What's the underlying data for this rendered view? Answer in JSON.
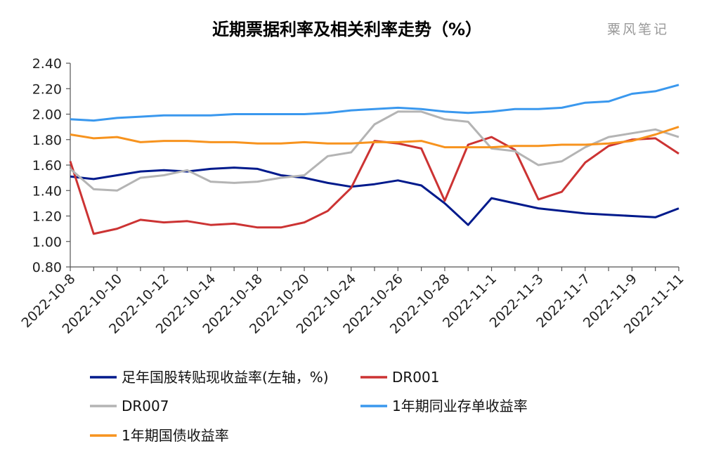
{
  "chart_data": {
    "type": "line",
    "title": "近期票据利率及相关利率走势（%）",
    "watermark": "粟风笔记",
    "ylim": [
      0.8,
      2.4
    ],
    "yticks": [
      "0.80",
      "1.00",
      "1.20",
      "1.40",
      "1.60",
      "1.80",
      "2.00",
      "2.20",
      "2.40"
    ],
    "x_tick_labels": [
      "2022-10-8",
      "2022-10-10",
      "2022-10-12",
      "2022-10-14",
      "2022-10-18",
      "2022-10-20",
      "2022-10-24",
      "2022-10-26",
      "2022-10-28",
      "2022-11-1",
      "2022-11-3",
      "2022-11-7",
      "2022-11-9",
      "2022-11-11"
    ],
    "point_count": 27,
    "series": [
      {
        "name": "足年国股转贴现收益率(左轴，%)",
        "color": "#001a8c",
        "values": [
          1.51,
          1.49,
          1.52,
          1.55,
          1.56,
          1.55,
          1.57,
          1.58,
          1.57,
          1.52,
          1.5,
          1.46,
          1.43,
          1.45,
          1.48,
          1.44,
          1.3,
          1.13,
          1.34,
          1.3,
          1.26,
          1.24,
          1.22,
          1.21,
          1.2,
          1.19,
          1.26
        ]
      },
      {
        "name": "DR001",
        "color": "#cc3333",
        "values": [
          1.63,
          1.06,
          1.1,
          1.17,
          1.15,
          1.16,
          1.13,
          1.14,
          1.11,
          1.11,
          1.15,
          1.24,
          1.42,
          1.79,
          1.77,
          1.73,
          1.32,
          1.76,
          1.82,
          1.72,
          1.33,
          1.39,
          1.62,
          1.75,
          1.8,
          1.81,
          1.69
        ]
      },
      {
        "name": "DR007",
        "color": "#b4b4b4",
        "values": [
          1.57,
          1.41,
          1.4,
          1.5,
          1.52,
          1.56,
          1.47,
          1.46,
          1.47,
          1.5,
          1.52,
          1.67,
          1.7,
          1.92,
          2.02,
          2.02,
          1.96,
          1.94,
          1.73,
          1.71,
          1.6,
          1.63,
          1.74,
          1.82,
          1.85,
          1.88,
          1.82
        ]
      },
      {
        "name": "1年期同业存单收益率",
        "color": "#3a98ee",
        "values": [
          1.96,
          1.95,
          1.97,
          1.98,
          1.99,
          1.99,
          1.99,
          2.0,
          2.0,
          2.0,
          2.0,
          2.01,
          2.03,
          2.04,
          2.05,
          2.04,
          2.02,
          2.01,
          2.02,
          2.04,
          2.04,
          2.05,
          2.09,
          2.1,
          2.16,
          2.18,
          2.23
        ]
      },
      {
        "name": "1年期国债收益率",
        "color": "#f7931e",
        "values": [
          1.84,
          1.81,
          1.82,
          1.78,
          1.79,
          1.79,
          1.78,
          1.78,
          1.77,
          1.77,
          1.78,
          1.77,
          1.77,
          1.78,
          1.78,
          1.79,
          1.74,
          1.74,
          1.74,
          1.75,
          1.75,
          1.76,
          1.76,
          1.77,
          1.79,
          1.84,
          1.9
        ]
      }
    ]
  }
}
